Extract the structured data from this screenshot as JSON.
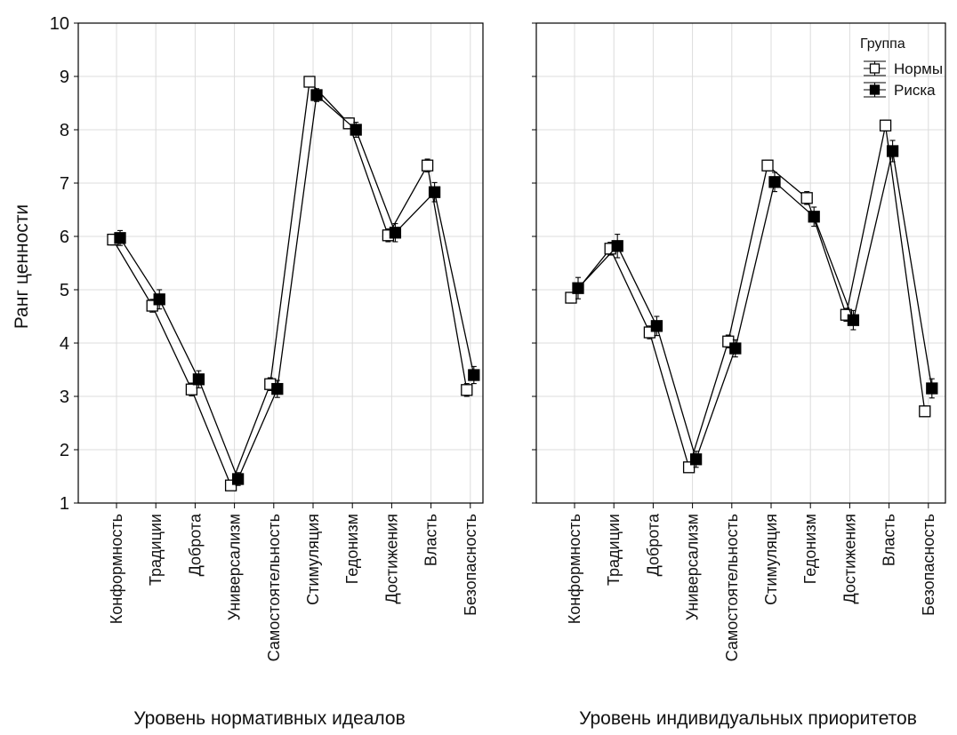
{
  "chart_data": [
    {
      "type": "line",
      "xlabel": "Уровень нормативных идеалов",
      "ylabel": "Ранг ценности",
      "ylim": [
        1,
        10
      ],
      "yticks": [
        1,
        2,
        3,
        4,
        5,
        6,
        7,
        8,
        9,
        10
      ],
      "grid": true,
      "categories": [
        "Конформность",
        "Традиции",
        "Доброта",
        "Универсализм",
        "Самостоятельность",
        "Стимуляция",
        "Гедонизм",
        "Достижения",
        "Власть",
        "Безопасность"
      ],
      "series": [
        {
          "marker": "open-square",
          "color": "#000000",
          "values": [
            5.94,
            4.7,
            3.13,
            1.33,
            3.23,
            8.9,
            8.12,
            6.02,
            7.33,
            3.12
          ],
          "errors": [
            0.1,
            0.12,
            0.12,
            0.08,
            0.12,
            0.08,
            0.1,
            0.12,
            0.12,
            0.12
          ]
        },
        {
          "marker": "filled-square",
          "color": "#000000",
          "values": [
            5.97,
            4.82,
            3.32,
            1.45,
            3.14,
            8.65,
            8.0,
            6.07,
            6.83,
            3.4
          ],
          "errors": [
            0.14,
            0.18,
            0.16,
            0.12,
            0.16,
            0.12,
            0.14,
            0.17,
            0.18,
            0.16
          ]
        }
      ]
    },
    {
      "type": "line",
      "xlabel": "Уровень индивидуальных приоритетов",
      "ylim": [
        1,
        10
      ],
      "grid": true,
      "legend": {
        "title": "Группа",
        "placement": "top-right"
      },
      "categories": [
        "Конформность",
        "Традиции",
        "Доброта",
        "Универсализм",
        "Самостоятельность",
        "Стимуляция",
        "Гедонизм",
        "Достижения",
        "Власть",
        "Безопасность"
      ],
      "series": [
        {
          "name": "Нормы",
          "marker": "open-square",
          "color": "#000000",
          "values": [
            4.85,
            5.77,
            4.2,
            1.67,
            4.03,
            7.33,
            6.72,
            4.53,
            8.08,
            2.72
          ],
          "errors": [
            0.1,
            0.12,
            0.12,
            0.08,
            0.12,
            0.1,
            0.12,
            0.12,
            0.1,
            0.1
          ]
        },
        {
          "name": "Риска",
          "marker": "filled-square",
          "color": "#000000",
          "values": [
            5.03,
            5.82,
            4.32,
            1.82,
            3.9,
            7.02,
            6.37,
            4.43,
            7.6,
            3.15
          ],
          "errors": [
            0.2,
            0.22,
            0.18,
            0.15,
            0.16,
            0.18,
            0.18,
            0.18,
            0.2,
            0.18
          ]
        }
      ]
    }
  ]
}
